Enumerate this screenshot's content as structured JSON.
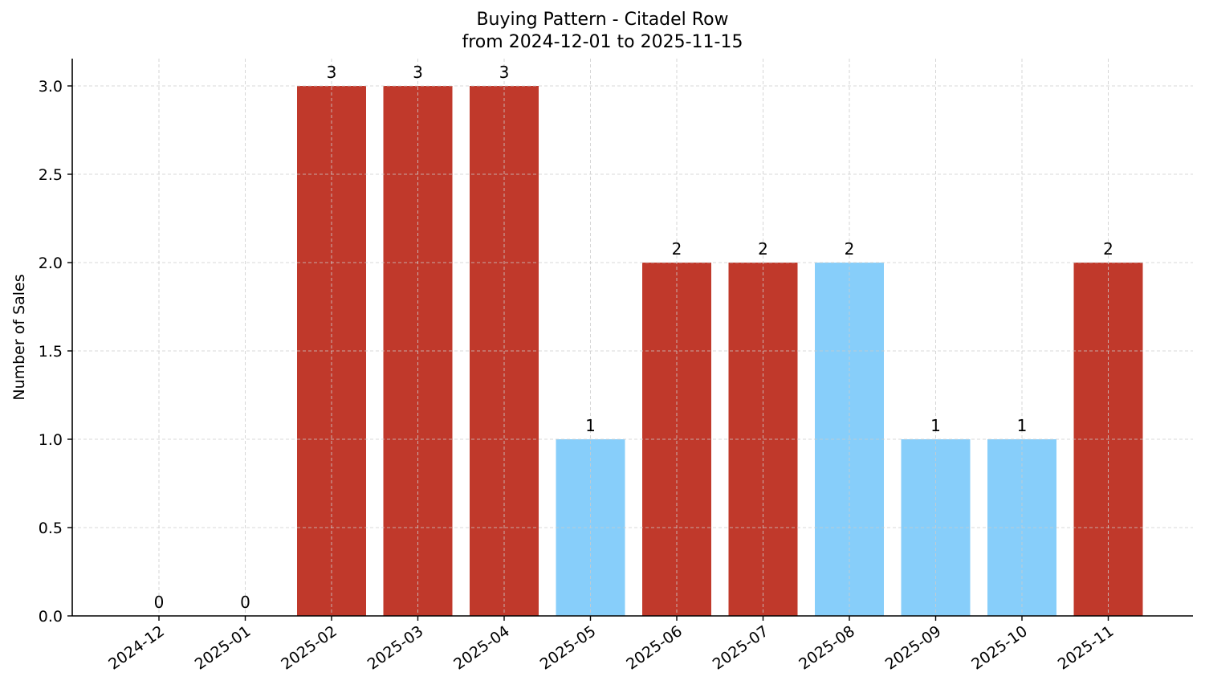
{
  "chart_data": {
    "type": "bar",
    "title": "Buying Pattern - Citadel Row",
    "subtitle": "from 2024-12-01 to 2025-11-15",
    "xlabel": "",
    "ylabel": "Number of Sales",
    "categories": [
      "2024-12",
      "2025-01",
      "2025-02",
      "2025-03",
      "2025-04",
      "2025-05",
      "2025-06",
      "2025-07",
      "2025-08",
      "2025-09",
      "2025-10",
      "2025-11"
    ],
    "values": [
      0,
      0,
      3,
      3,
      3,
      1,
      2,
      2,
      2,
      1,
      1,
      2
    ],
    "bar_colors": [
      "#C0392B",
      "#C0392B",
      "#C0392B",
      "#C0392B",
      "#C0392B",
      "#87CEFA",
      "#C0392B",
      "#C0392B",
      "#87CEFA",
      "#87CEFA",
      "#87CEFA",
      "#C0392B"
    ],
    "data_labels": [
      "0",
      "0",
      "3",
      "3",
      "3",
      "1",
      "2",
      "2",
      "2",
      "1",
      "1",
      "2"
    ],
    "ylim": [
      0,
      3.15
    ],
    "yticks": [
      "0.0",
      "0.5",
      "1.0",
      "1.5",
      "2.0",
      "2.5",
      "3.0"
    ],
    "grid": true,
    "legend": null
  },
  "colors": {
    "high": "#C0392B",
    "low": "#87CEFA",
    "grid": "#cccccc",
    "axis": "#000000"
  }
}
